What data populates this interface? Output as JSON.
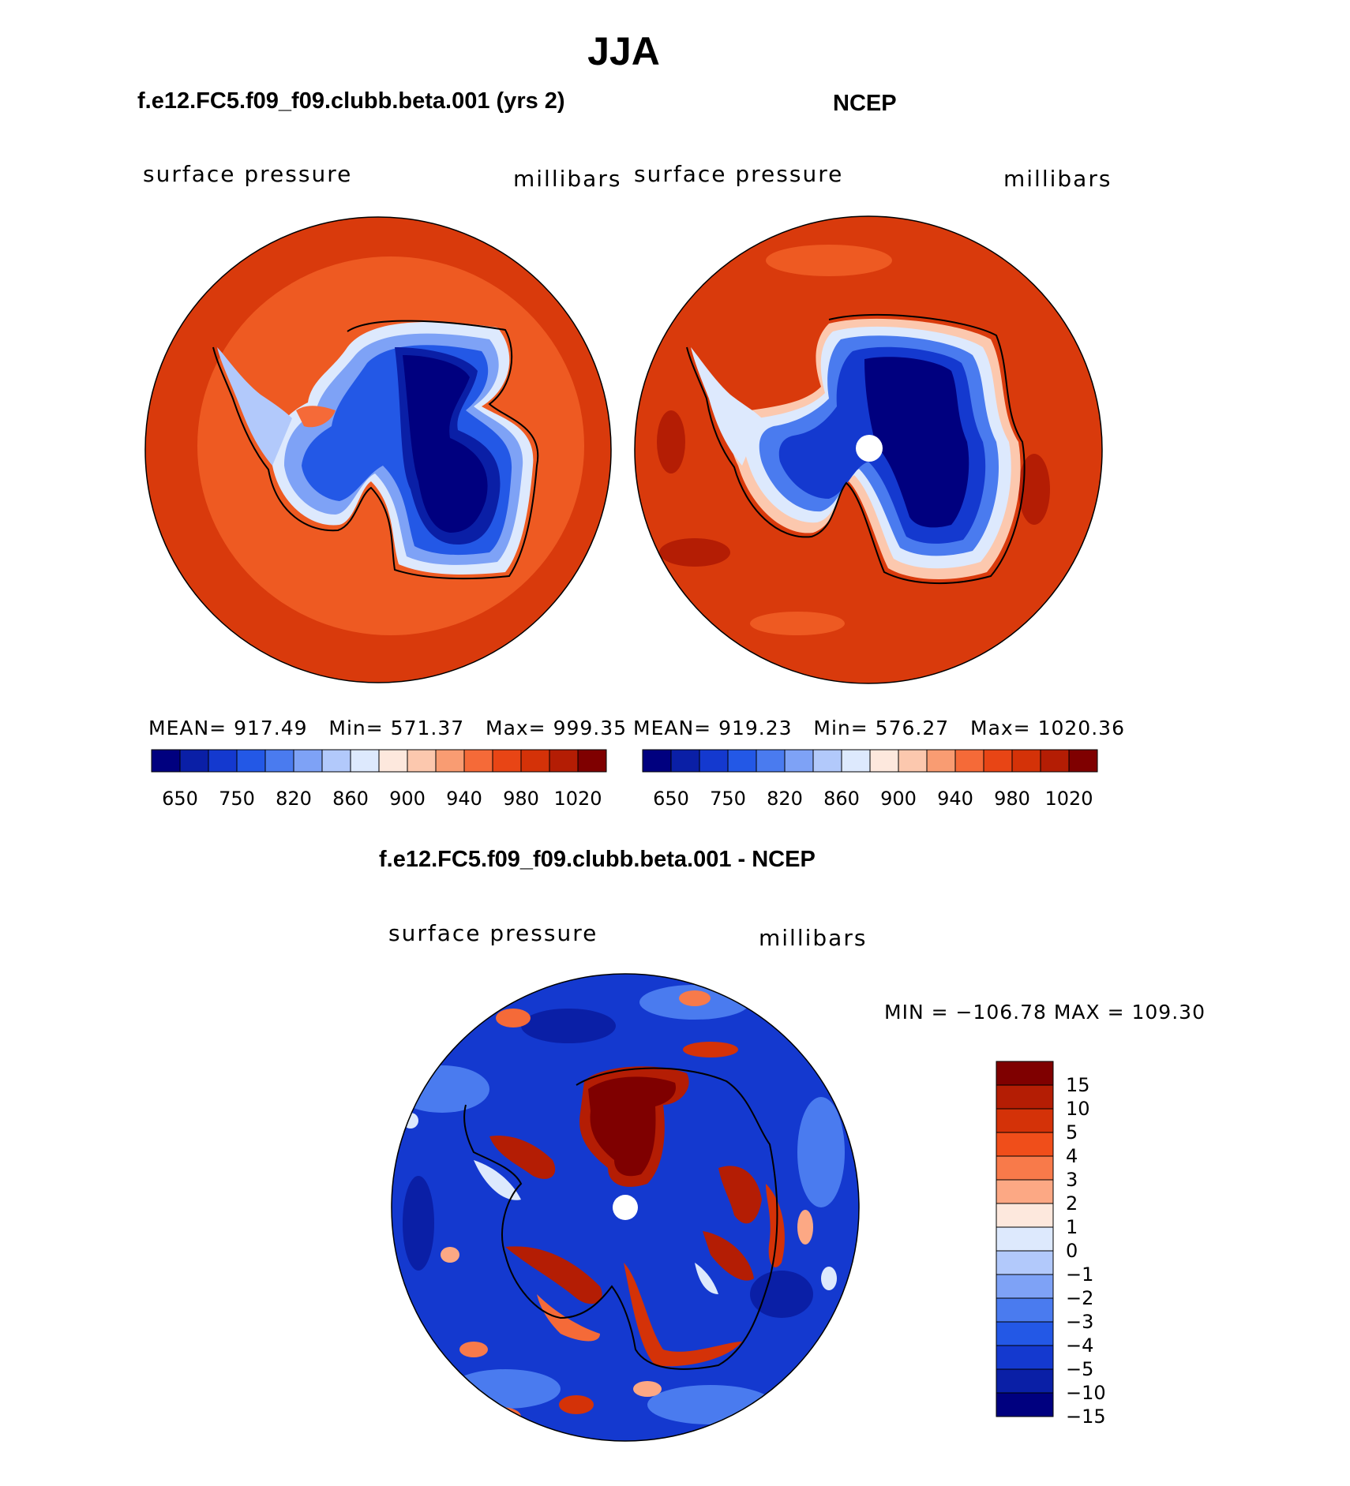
{
  "title": "JJA",
  "panels": [
    {
      "id": "model",
      "case_title": "f.e12.FC5.f09_f09.clubb.beta.001 (yrs 2)",
      "variable": "surface  pressure",
      "units": "millibars",
      "stats": {
        "mean_label": "MEAN=",
        "mean": "917.49",
        "min_label": "Min=",
        "min": "571.37",
        "max_label": "Max=",
        "max": "999.35"
      },
      "has_pole_hole": false
    },
    {
      "id": "obs",
      "case_title": "NCEP",
      "variable": "surface  pressure",
      "units": "millibars",
      "stats": {
        "mean_label": "MEAN=",
        "mean": "919.23",
        "min_label": "Min=",
        "min": "576.27",
        "max_label": "Max=",
        "max": "1020.36"
      },
      "has_pole_hole": true
    }
  ],
  "colorbar": {
    "colors": [
      "#00007f",
      "#0a1fa6",
      "#1439cf",
      "#2358e6",
      "#4a7bef",
      "#7ea2f6",
      "#b2c9fb",
      "#dde9fd",
      "#fde8dd",
      "#fcc8ae",
      "#f99c72",
      "#f56a38",
      "#e84515",
      "#d43208",
      "#b41d04",
      "#7f0000"
    ],
    "tick_labels": [
      "650",
      "750",
      "820",
      "860",
      "900",
      "940",
      "980",
      "1020"
    ]
  },
  "difference": {
    "title": "f.e12.FC5.f09_f09.clubb.beta.001 - NCEP",
    "variable": "surface  pressure",
    "units": "millibars",
    "minmax_text": "MIN = −106.78 MAX = 109.30",
    "colorbar": {
      "colors": [
        "#7f0000",
        "#b41d04",
        "#d43208",
        "#f04e1a",
        "#f87a4a",
        "#fca884",
        "#fde8dd",
        "#dde9fd",
        "#b2c9fb",
        "#7ea2f6",
        "#4a7bef",
        "#2358e6",
        "#1439cf",
        "#0a1fa6",
        "#00007f"
      ],
      "tick_labels": [
        "15",
        "10",
        "5",
        "4",
        "3",
        "2",
        "1",
        "0",
        "−1",
        "−2",
        "−3",
        "−4",
        "−5",
        "−10",
        "−15"
      ]
    }
  }
}
